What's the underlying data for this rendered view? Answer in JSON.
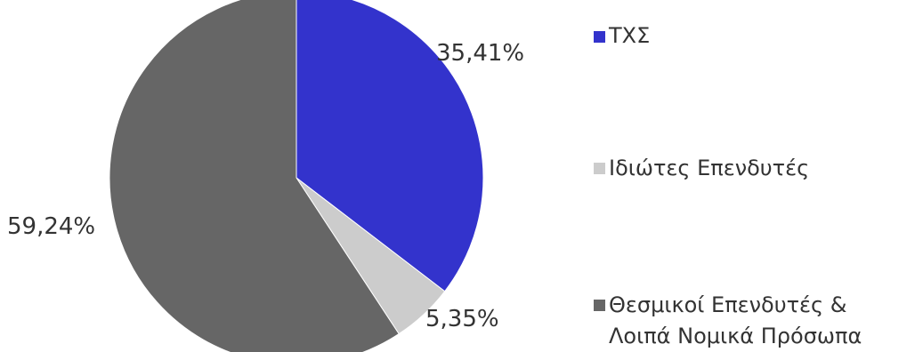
{
  "chart_data": {
    "type": "pie",
    "start_angle_deg": 0,
    "direction": "clockwise",
    "legend_position": "right",
    "slices": [
      {
        "label": "ΤΧΣ",
        "value": 35.41,
        "value_label": "35,41%",
        "color": "#3333cc"
      },
      {
        "label": "Ιδιώτες Επενδυτές",
        "value": 5.35,
        "value_label": "5,35%",
        "color": "#cccccc"
      },
      {
        "label": [
          "Θεσμικοί Επενδυτές &",
          "Λοιπά Νομικά Πρόσωπα"
        ],
        "value": 59.24,
        "value_label": "59,24%",
        "color": "#666666"
      }
    ]
  }
}
